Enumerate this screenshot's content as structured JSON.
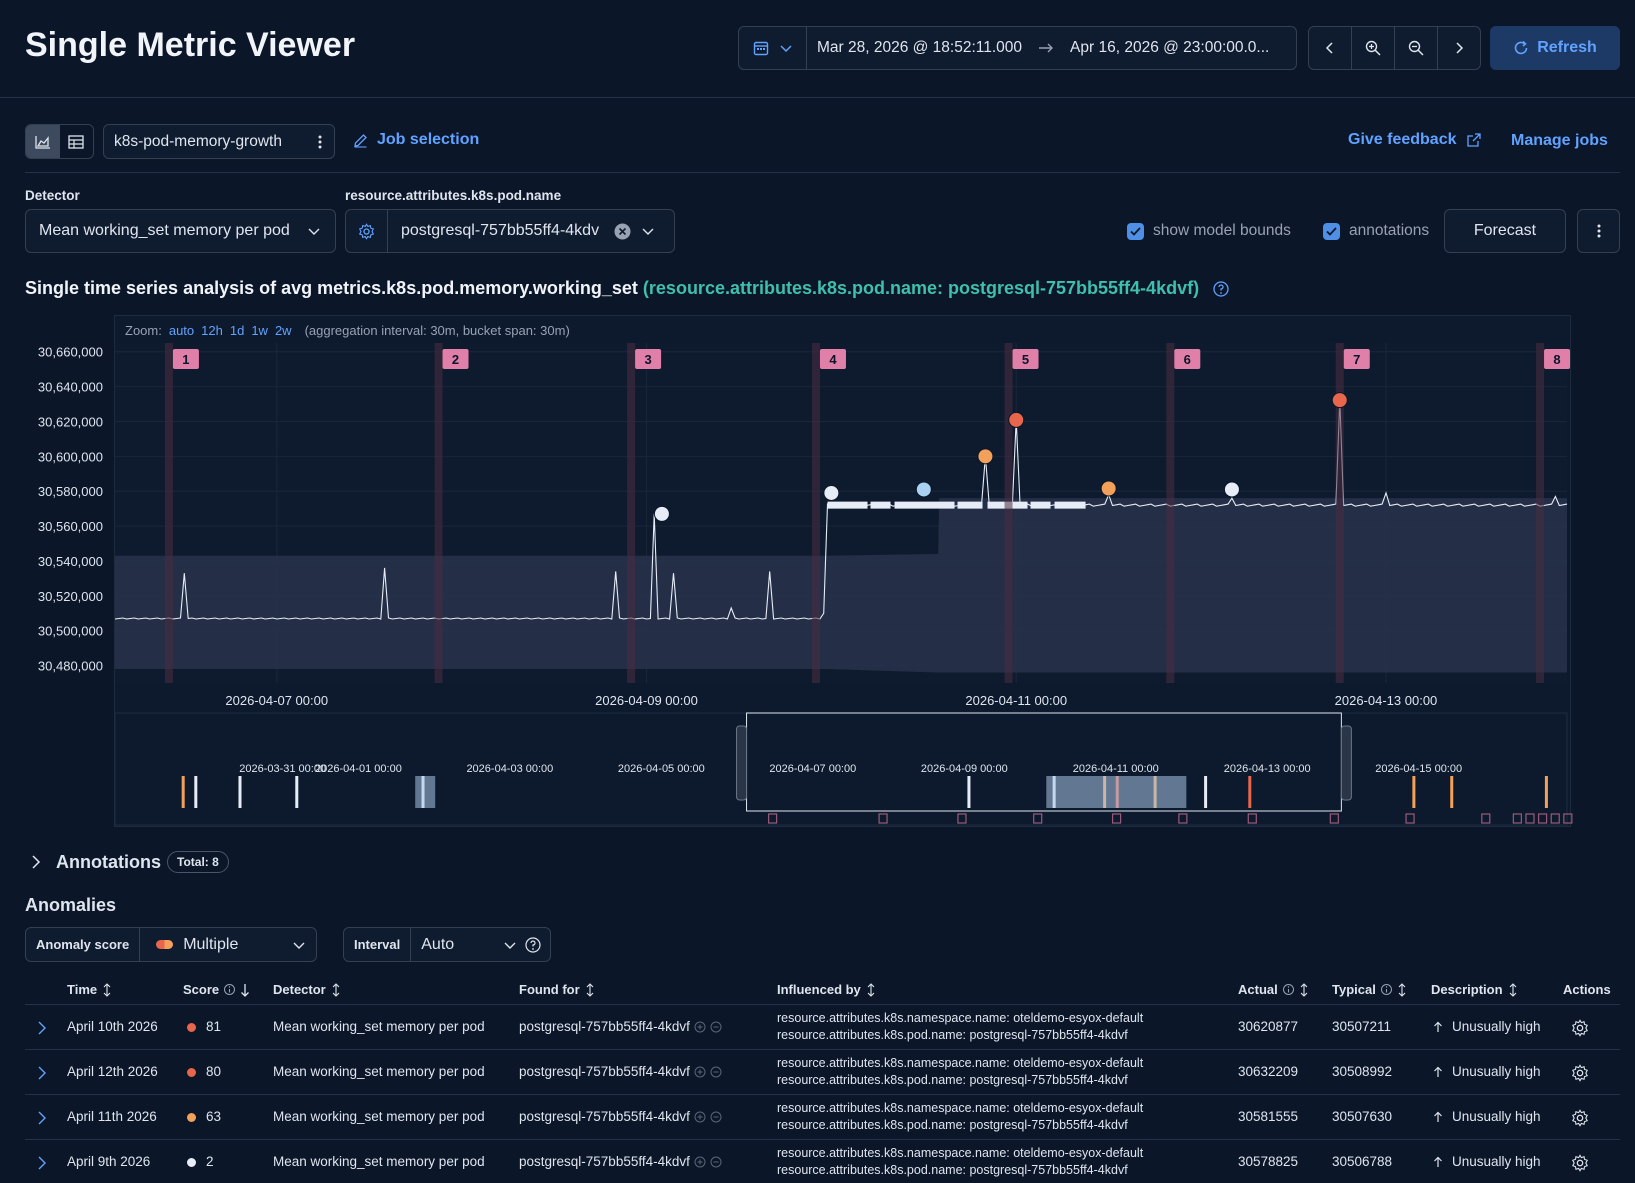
{
  "header": {
    "title": "Single Metric Viewer",
    "date_start": "Mar 28, 2026 @ 18:52:11.000",
    "date_end": "Apr 16, 2026 @ 23:00:00.0...",
    "refresh_label": "Refresh"
  },
  "toolbar": {
    "job_id": "k8s-pod-memory-growth",
    "job_selection_label": "Job selection",
    "give_feedback_label": "Give feedback",
    "manage_jobs_label": "Manage jobs"
  },
  "controls": {
    "detector_label": "Detector",
    "detector_value": "Mean working_set memory per pod",
    "entity_label": "resource.attributes.k8s.pod.name",
    "entity_value": "postgresql-757bb55ff4-4kdv",
    "show_model_bounds_label": "show model bounds",
    "annotations_label": "annotations",
    "forecast_label": "Forecast"
  },
  "analysis": {
    "title_main": "Single time series analysis of avg metrics.k8s.pod.memory.working_set",
    "title_entity": "(resource.attributes.k8s.pod.name: postgresql-757bb55ff4-4kdvf)",
    "zoom_label": "Zoom:",
    "zoom_options": [
      "auto",
      "12h",
      "1d",
      "1w",
      "2w"
    ],
    "aggregation_note": "(aggregation interval: 30m, bucket span: 30m)"
  },
  "chart_data": {
    "type": "line",
    "ylim": [
      30470000,
      30665000
    ],
    "y_ticks": [
      "30,660,000",
      "30,640,000",
      "30,620,000",
      "30,600,000",
      "30,580,000",
      "30,560,000",
      "30,540,000",
      "30,520,000",
      "30,500,000",
      "30,480,000"
    ],
    "x_ticks": [
      "2026-04-07 00:00",
      "2026-04-09 00:00",
      "2026-04-11 00:00",
      "2026-04-13 00:00"
    ],
    "annotation_labels": [
      "1",
      "2",
      "3",
      "4",
      "5",
      "6",
      "7",
      "8"
    ],
    "anomaly_markers": [
      {
        "time": "2026-04-09 02:00",
        "value": 30567000,
        "severity": "low"
      },
      {
        "time": "2026-04-10 00:00",
        "value": 30579000,
        "severity": "low"
      },
      {
        "time": "2026-04-10 12:00",
        "value": 30581000,
        "severity": "warning"
      },
      {
        "time": "2026-04-10 20:00",
        "value": 30600000,
        "severity": "major"
      },
      {
        "time": "2026-04-11 00:00",
        "value": 30620877,
        "severity": "critical"
      },
      {
        "time": "2026-04-11 12:00",
        "value": 30581555,
        "severity": "major"
      },
      {
        "time": "2026-04-12 04:00",
        "value": 30581000,
        "severity": "low"
      },
      {
        "time": "2026-04-12 18:00",
        "value": 30632209,
        "severity": "critical"
      }
    ],
    "context_x_ticks": [
      "2026-03-31 00:00",
      "2026-04-01 00:00",
      "2026-04-03 00:00",
      "2026-04-05 00:00",
      "2026-04-07 00:00",
      "2026-04-09 00:00",
      "2026-04-11 00:00",
      "2026-04-13 00:00",
      "2026-04-15 00:00"
    ],
    "colors": {
      "critical": "#e7664c",
      "major": "#f3a05a",
      "warning": "#a9d1f2",
      "low": "#e6edf6"
    }
  },
  "annotations_section": {
    "title": "Annotations",
    "total_label": "Total: 8"
  },
  "anomalies": {
    "title": "Anomalies",
    "score_filter_label": "Anomaly score",
    "score_filter_value": "Multiple",
    "interval_label": "Interval",
    "interval_value": "Auto",
    "columns": [
      "Time",
      "Score",
      "Detector",
      "Found for",
      "Influenced by",
      "Actual",
      "Typical",
      "Description",
      "Actions"
    ],
    "rows": [
      {
        "time": "April 10th 2026",
        "score": "81",
        "score_color": "#e7664c",
        "detector": "Mean working_set memory per pod",
        "found_for": "postgresql-757bb55ff4-4kdvf",
        "influencer1": "resource.attributes.k8s.namespace.name: oteldemo-esyox-default",
        "influencer2": "resource.attributes.k8s.pod.name: postgresql-757bb55ff4-4kdvf",
        "actual": "30620877",
        "typical": "30507211",
        "description": "Unusually high"
      },
      {
        "time": "April 12th 2026",
        "score": "80",
        "score_color": "#e7664c",
        "detector": "Mean working_set memory per pod",
        "found_for": "postgresql-757bb55ff4-4kdvf",
        "influencer1": "resource.attributes.k8s.namespace.name: oteldemo-esyox-default",
        "influencer2": "resource.attributes.k8s.pod.name: postgresql-757bb55ff4-4kdvf",
        "actual": "30632209",
        "typical": "30508992",
        "description": "Unusually high"
      },
      {
        "time": "April 11th 2026",
        "score": "63",
        "score_color": "#f3a05a",
        "detector": "Mean working_set memory per pod",
        "found_for": "postgresql-757bb55ff4-4kdvf",
        "influencer1": "resource.attributes.k8s.namespace.name: oteldemo-esyox-default",
        "influencer2": "resource.attributes.k8s.pod.name: postgresql-757bb55ff4-4kdvf",
        "actual": "30581555",
        "typical": "30507630",
        "description": "Unusually high"
      },
      {
        "time": "April 9th 2026",
        "score": "2",
        "score_color": "#e6edf6",
        "detector": "Mean working_set memory per pod",
        "found_for": "postgresql-757bb55ff4-4kdvf",
        "influencer1": "resource.attributes.k8s.namespace.name: oteldemo-esyox-default",
        "influencer2": "resource.attributes.k8s.pod.name: postgresql-757bb55ff4-4kdvf",
        "actual": "30578825",
        "typical": "30506788",
        "description": "Unusually high"
      }
    ]
  }
}
